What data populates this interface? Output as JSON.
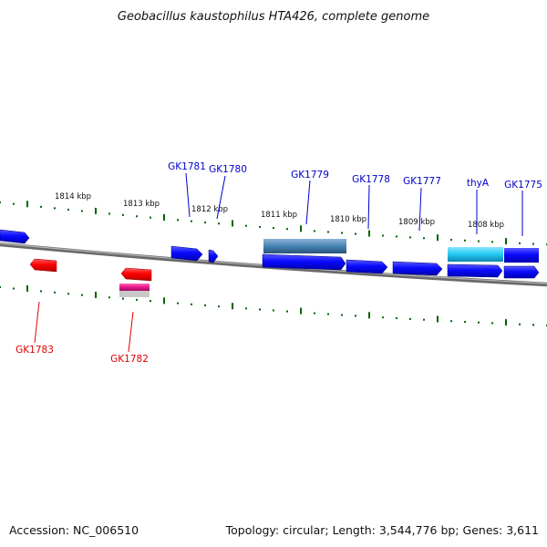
{
  "header": {
    "title": "Geobacillus kaustophilus HTA426, complete genome"
  },
  "footer": {
    "accession": "Accession: NC_006510",
    "summary": "Topology: circular; Length: 3,544,776 bp; Genes: 3,611"
  },
  "colors": {
    "forward_gene": "#0a0aff",
    "reverse_gene": "#ff0000",
    "rna_gene": "#e8168c",
    "cds_feature": "#4682b4",
    "highlight_gene": "#22c8f0",
    "tick": "#006400",
    "label_forward": "#0000cc",
    "label_reverse": "#dd0000",
    "backbone": "#7a7a7a"
  },
  "scale_ticks": [
    "1814 kbp",
    "1813 kbp",
    "1812 kbp",
    "1811 kbp",
    "1810 kbp",
    "1809 kbp",
    "1808 kbp"
  ],
  "gene_labels": [
    {
      "text": "GK1781",
      "strand": "forward"
    },
    {
      "text": "GK1780",
      "strand": "forward"
    },
    {
      "text": "GK1779",
      "strand": "forward"
    },
    {
      "text": "GK1778",
      "strand": "forward"
    },
    {
      "text": "GK1777",
      "strand": "forward"
    },
    {
      "text": "thyA",
      "strand": "forward"
    },
    {
      "text": "GK1775",
      "strand": "forward"
    },
    {
      "text": "GK1783",
      "strand": "reverse"
    },
    {
      "text": "GK1782",
      "strand": "reverse"
    }
  ]
}
